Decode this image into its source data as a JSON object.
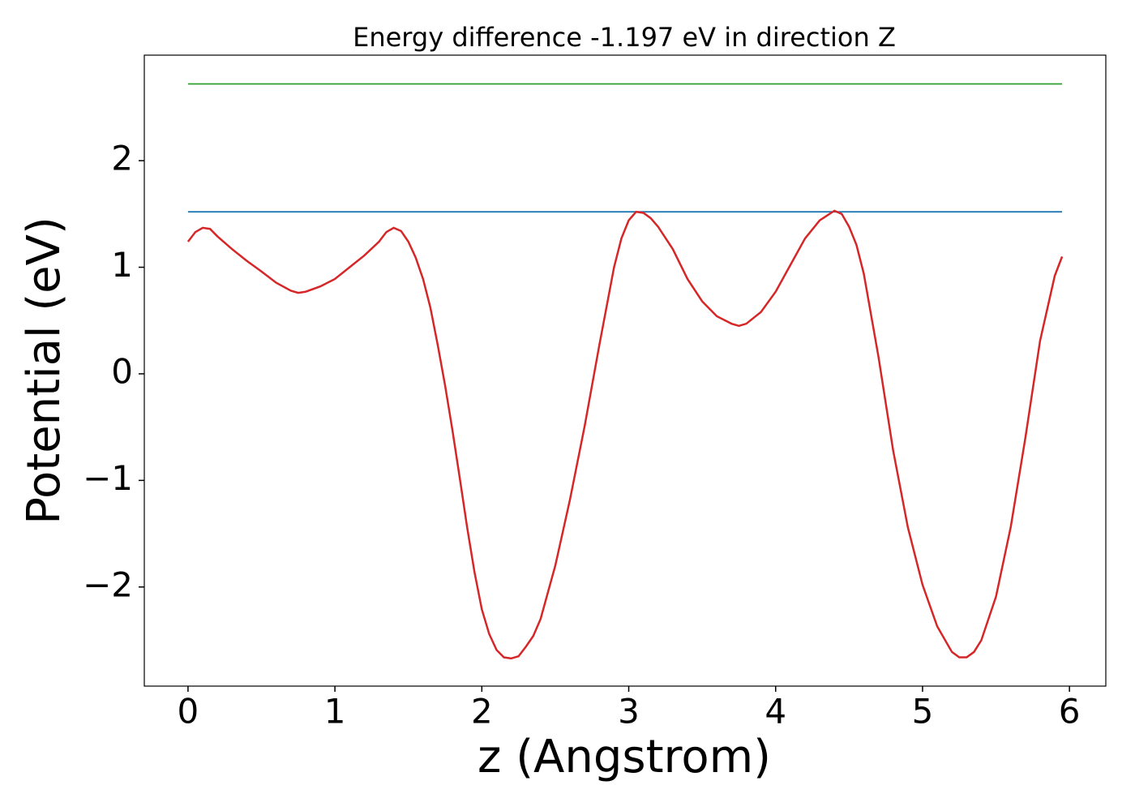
{
  "chart_data": {
    "type": "line",
    "title": "Energy difference -1.197 eV in direction Z",
    "xlabel": "z (Angstrom)",
    "ylabel": "Potential (eV)",
    "xlim": [
      -0.2975,
      6.2475
    ],
    "ylim": [
      -2.93,
      2.99
    ],
    "xticks": [
      0,
      1,
      2,
      3,
      4,
      5,
      6
    ],
    "yticks": [
      {
        "value": -2,
        "label": "−2"
      },
      {
        "value": -1,
        "label": "−1"
      },
      0,
      1,
      2
    ],
    "series": [
      {
        "color": "#d62728",
        "x": [
          0,
          0.05,
          0.1,
          0.15,
          0.2,
          0.3,
          0.4,
          0.5,
          0.6,
          0.7,
          0.75,
          0.8,
          0.9,
          1.0,
          1.1,
          1.2,
          1.3,
          1.35,
          1.4,
          1.45,
          1.5,
          1.55,
          1.6,
          1.65,
          1.7,
          1.75,
          1.8,
          1.85,
          1.9,
          1.95,
          2.0,
          2.05,
          2.1,
          2.15,
          2.2,
          2.25,
          2.3,
          2.35,
          2.4,
          2.5,
          2.6,
          2.7,
          2.8,
          2.9,
          2.95,
          3.0,
          3.05,
          3.1,
          3.15,
          3.2,
          3.3,
          3.4,
          3.5,
          3.6,
          3.7,
          3.75,
          3.8,
          3.9,
          4.0,
          4.1,
          4.2,
          4.3,
          4.4,
          4.45,
          4.5,
          4.55,
          4.6,
          4.7,
          4.8,
          4.9,
          5.0,
          5.1,
          5.2,
          5.25,
          5.3,
          5.35,
          5.4,
          5.5,
          5.6,
          5.7,
          5.8,
          5.9,
          5.95
        ],
        "values": [
          1.24,
          1.33,
          1.37,
          1.36,
          1.29,
          1.17,
          1.06,
          0.96,
          0.855,
          0.78,
          0.76,
          0.77,
          0.82,
          0.89,
          1.0,
          1.11,
          1.24,
          1.33,
          1.37,
          1.34,
          1.24,
          1.09,
          0.89,
          0.62,
          0.27,
          -0.11,
          -0.53,
          -0.98,
          -1.44,
          -1.86,
          -2.21,
          -2.44,
          -2.59,
          -2.66,
          -2.67,
          -2.65,
          -2.56,
          -2.46,
          -2.3,
          -1.8,
          -1.18,
          -0.49,
          0.27,
          1.0,
          1.27,
          1.44,
          1.52,
          1.51,
          1.46,
          1.38,
          1.17,
          0.89,
          0.68,
          0.54,
          0.47,
          0.45,
          0.47,
          0.58,
          0.77,
          1.02,
          1.27,
          1.44,
          1.53,
          1.5,
          1.38,
          1.21,
          0.94,
          0.16,
          -0.72,
          -1.44,
          -1.98,
          -2.37,
          -2.61,
          -2.66,
          -2.66,
          -2.61,
          -2.5,
          -2.09,
          -1.44,
          -0.6,
          0.31,
          0.92,
          1.1
        ]
      },
      {
        "color": "#1f77b4",
        "x": [
          0,
          5.95
        ],
        "values": [
          1.52,
          1.52
        ]
      },
      {
        "color": "#2ca02c",
        "x": [
          0,
          5.95
        ],
        "values": [
          2.72,
          2.72
        ]
      }
    ]
  }
}
